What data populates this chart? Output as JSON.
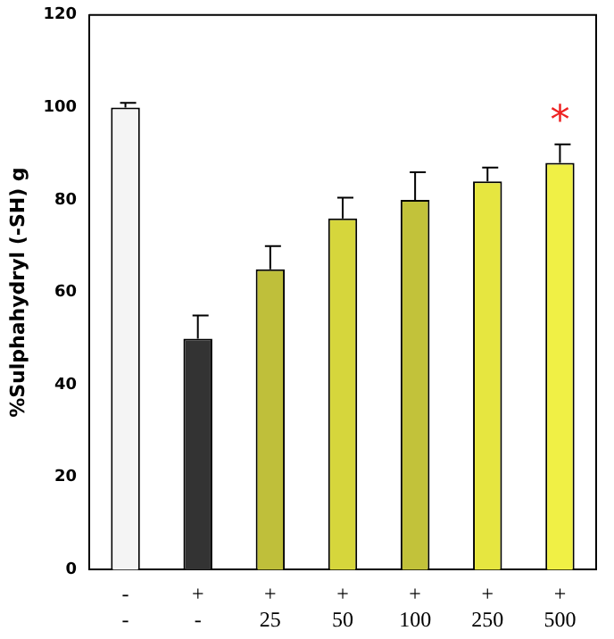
{
  "chart_data": {
    "type": "bar",
    "ylabel": "%Sulphahydryl (-SH) g",
    "categories": [
      "-\n-",
      "+\n-",
      "+\n25",
      "+\n50",
      "+\n100",
      "+\n250",
      "+\n500"
    ],
    "values": [
      100,
      50,
      65,
      76,
      80,
      84,
      88
    ],
    "errors": [
      [
        100,
        101
      ],
      [
        50,
        55
      ],
      [
        65,
        70
      ],
      [
        76,
        80.5
      ],
      [
        80,
        86
      ],
      [
        84,
        87
      ],
      [
        88,
        92
      ]
    ],
    "colors": [
      "#f4f4f4",
      "#333333",
      "#bfbf3a",
      "#d6d63c",
      "#c2c23a",
      "#e6e640",
      "#f0f045"
    ],
    "ylim": [
      0,
      120
    ],
    "yticks": [
      0,
      20,
      40,
      60,
      80,
      100,
      120
    ],
    "grid": false,
    "annotations": [
      "*"
    ]
  }
}
